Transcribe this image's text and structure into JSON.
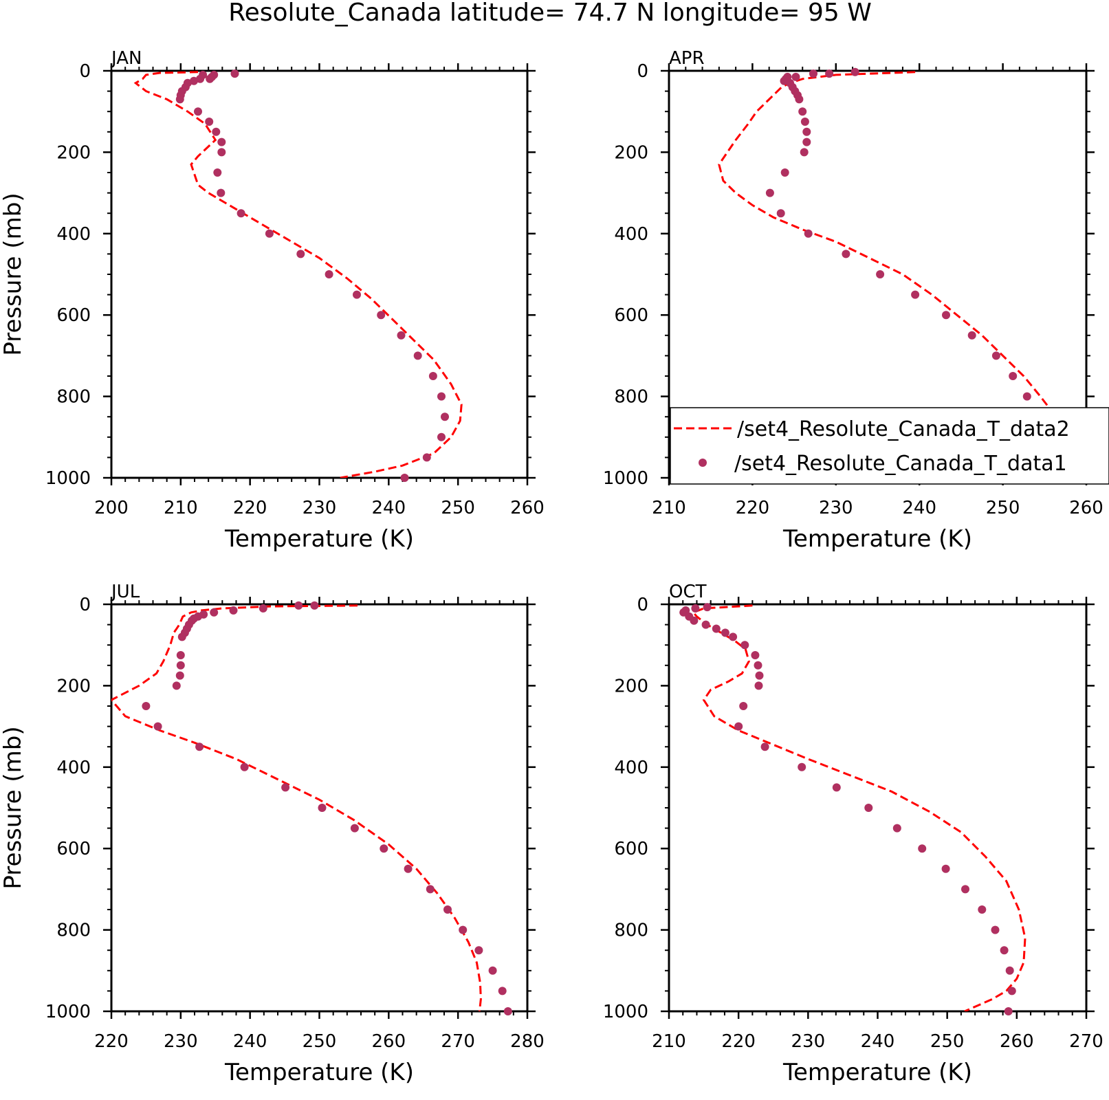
{
  "title": "Resolute_Canada  latitude= 74.7 N longitude= 95 W",
  "colors": {
    "model_line": "#ff0000",
    "obs_marker": "#b03060",
    "axis": "#000000"
  },
  "legend": {
    "entries": [
      "/set4_Resolute_Canada_T_data2",
      "/set4_Resolute_Canada_T_data1"
    ]
  },
  "chart_data": [
    {
      "panel": "JAN",
      "type": "line",
      "xlabel": "Temperature (K)",
      "ylabel": "Pressure (mb)",
      "xlim": [
        200,
        260
      ],
      "ylim": [
        1000,
        0
      ],
      "xticks": [
        "200",
        "210",
        "220",
        "230",
        "240",
        "250",
        "260"
      ],
      "yticks": [
        "0",
        "200",
        "400",
        "600",
        "800",
        "1000"
      ],
      "series": [
        {
          "style": "dashed-line",
          "x": [
            212.5,
            207,
            205,
            204.5,
            203.5,
            205,
            208,
            211,
            213.5,
            215,
            212.5,
            211.5,
            212.5,
            214,
            218,
            222,
            226,
            230,
            234,
            237.5,
            240.5,
            243.5,
            246.5,
            249,
            250.5,
            250.3,
            249,
            246.5,
            242,
            238,
            233
          ],
          "y": [
            3,
            5,
            10,
            20,
            30,
            50,
            70,
            100,
            130,
            170,
            210,
            230,
            280,
            300,
            340,
            380,
            420,
            460,
            510,
            560,
            610,
            660,
            710,
            770,
            820,
            860,
            900,
            940,
            970,
            985,
            1000
          ]
        },
        {
          "style": "markers",
          "x": [
            217.8,
            214.8,
            214.5,
            214.2,
            213.2,
            212.8,
            211.9,
            211,
            210.7,
            210.2,
            210,
            209.9,
            212.5,
            214.1,
            215.1,
            215.9,
            215.9,
            215.3,
            215.8,
            218.7,
            222.8,
            227.3,
            231.4,
            235.4,
            238.9,
            241.8,
            244.2,
            246.4,
            247.6,
            248.1,
            247.6,
            245.5,
            242.3
          ],
          "y": [
            7,
            10,
            15,
            20,
            10,
            20,
            25,
            30,
            40,
            50,
            60,
            70,
            100,
            125,
            150,
            175,
            200,
            250,
            300,
            350,
            400,
            450,
            500,
            550,
            600,
            650,
            700,
            750,
            800,
            850,
            900,
            950,
            1000
          ]
        }
      ]
    },
    {
      "panel": "APR",
      "type": "line",
      "xlabel": "Temperature (K)",
      "ylabel": "",
      "xlim": [
        210,
        260
      ],
      "ylim": [
        1000,
        0
      ],
      "xticks": [
        "210",
        "220",
        "230",
        "240",
        "250",
        "260"
      ],
      "yticks": [
        "0",
        "200",
        "400",
        "600",
        "800",
        "1000"
      ],
      "series": [
        {
          "style": "dashed-line",
          "x": [
            239.5,
            230,
            226,
            224.5,
            223.5,
            222.5,
            221.5,
            220.5,
            219.5,
            218,
            216,
            216.5,
            218,
            220,
            222.5,
            226,
            230,
            234,
            238,
            241.5,
            244.5,
            247.5,
            250,
            252.5,
            254.5,
            256,
            256.5,
            256,
            254,
            250.5,
            246.5
          ],
          "y": [
            3,
            10,
            20,
            30,
            40,
            60,
            80,
            100,
            130,
            170,
            230,
            270,
            300,
            330,
            360,
            390,
            420,
            460,
            500,
            550,
            600,
            650,
            700,
            750,
            800,
            840,
            880,
            920,
            950,
            980,
            1000
          ]
        },
        {
          "style": "markers",
          "x": [
            232.3,
            229.2,
            227.3,
            225.2,
            224.2,
            224,
            223.8,
            224.5,
            224.8,
            225.1,
            225.4,
            225.6,
            226,
            226.3,
            226.5,
            226.5,
            226.2,
            223.9,
            222.1,
            223.4,
            226.7,
            231.2,
            235.3,
            239.5,
            243.2,
            246.3,
            249.2,
            251.2,
            252.9,
            253.9,
            254.1,
            253.4,
            250.8
          ],
          "y": [
            3,
            7,
            7,
            15,
            15,
            20,
            25,
            30,
            40,
            50,
            60,
            70,
            100,
            125,
            150,
            175,
            200,
            250,
            300,
            350,
            400,
            450,
            500,
            550,
            600,
            650,
            700,
            750,
            800,
            850,
            900,
            950,
            1000
          ]
        }
      ]
    },
    {
      "panel": "JUL",
      "type": "line",
      "xlabel": "Temperature (K)",
      "ylabel": "Pressure (mb)",
      "xlim": [
        220,
        280
      ],
      "ylim": [
        1000,
        0
      ],
      "xticks": [
        "220",
        "230",
        "240",
        "250",
        "260",
        "270",
        "280"
      ],
      "yticks": [
        "0",
        "200",
        "400",
        "600",
        "800",
        "1000"
      ],
      "series": [
        {
          "style": "dashed-line",
          "x": [
            255.5,
            243,
            236,
            233,
            231.5,
            230.3,
            229.8,
            229,
            228.5,
            227.5,
            226.5,
            224,
            220,
            222,
            227,
            232,
            238,
            244,
            250,
            255,
            260,
            264,
            267,
            269.5,
            271.5,
            272.7,
            273.2,
            273.3,
            273.1
          ],
          "y": [
            3,
            5,
            10,
            15,
            20,
            30,
            50,
            70,
            100,
            140,
            170,
            200,
            235,
            275,
            310,
            340,
            380,
            430,
            480,
            530,
            590,
            650,
            710,
            770,
            830,
            880,
            930,
            970,
            1000
          ]
        },
        {
          "style": "markers",
          "x": [
            249.3,
            247,
            241.9,
            237.6,
            234.8,
            233.3,
            232.5,
            231.9,
            231.6,
            231.2,
            230.9,
            230.6,
            230.2,
            230,
            230,
            229.9,
            229.4,
            225,
            226.7,
            232.7,
            239.2,
            245.1,
            250.4,
            255.1,
            259.3,
            262.8,
            266,
            268.5,
            270.7,
            273,
            275,
            276.4,
            277.2
          ],
          "y": [
            3,
            3,
            10,
            15,
            20,
            25,
            30,
            35,
            40,
            50,
            60,
            70,
            80,
            125,
            150,
            175,
            200,
            250,
            300,
            350,
            400,
            450,
            500,
            550,
            600,
            650,
            700,
            750,
            800,
            850,
            900,
            950,
            1000
          ]
        }
      ]
    },
    {
      "panel": "OCT",
      "type": "line",
      "xlabel": "Temperature (K)",
      "ylabel": "",
      "xlim": [
        210,
        270
      ],
      "ylim": [
        1000,
        0
      ],
      "xticks": [
        "210",
        "220",
        "230",
        "240",
        "250",
        "260",
        "270"
      ],
      "yticks": [
        "0",
        "200",
        "400",
        "600",
        "800",
        "1000"
      ],
      "series": [
        {
          "style": "dashed-line",
          "x": [
            222,
            215,
            213.5,
            214,
            215.5,
            217.5,
            219.5,
            221,
            221.5,
            220.5,
            218.5,
            216,
            215,
            216.5,
            220,
            225,
            230,
            236,
            242,
            247.5,
            252,
            255.5,
            258.5,
            260.3,
            261.2,
            261,
            260,
            258.5,
            256.5,
            252.5
          ],
          "y": [
            3,
            10,
            20,
            30,
            50,
            70,
            90,
            110,
            140,
            170,
            190,
            210,
            235,
            275,
            310,
            345,
            380,
            420,
            460,
            510,
            560,
            620,
            680,
            750,
            820,
            880,
            920,
            950,
            970,
            1000
          ]
        },
        {
          "style": "markers",
          "x": [
            215.5,
            213.8,
            212.4,
            212.1,
            212.9,
            213.6,
            215.3,
            216.8,
            218.1,
            219.2,
            220.9,
            222.4,
            222.8,
            223,
            222.9,
            220.7,
            220,
            223.8,
            229.1,
            234.1,
            238.7,
            242.8,
            246.4,
            249.8,
            252.6,
            255,
            256.9,
            258.2,
            259,
            259.3,
            258.8
          ],
          "y": [
            7,
            10,
            15,
            20,
            30,
            40,
            50,
            60,
            70,
            80,
            100,
            125,
            150,
            175,
            200,
            250,
            300,
            350,
            400,
            450,
            500,
            550,
            600,
            650,
            700,
            750,
            800,
            850,
            900,
            950,
            1000
          ]
        }
      ]
    }
  ]
}
